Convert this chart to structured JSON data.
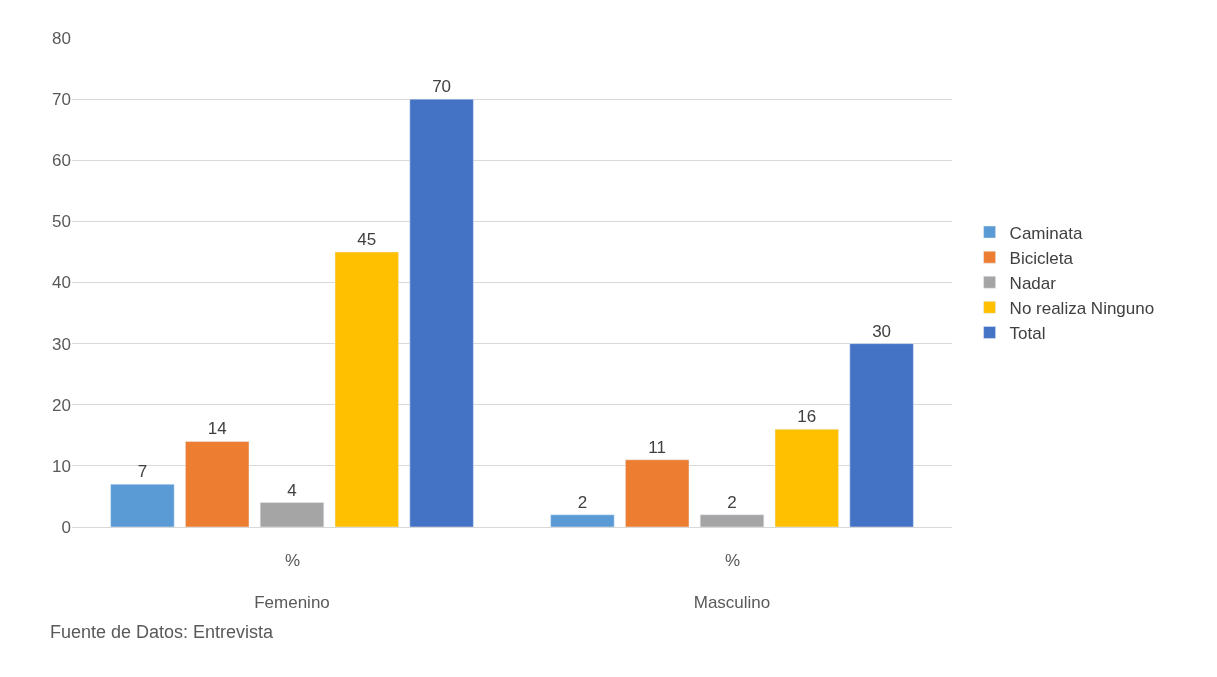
{
  "chart_data": {
    "type": "bar",
    "categories": [
      "Femenino",
      "Masculino"
    ],
    "series": [
      {
        "name": "Caminata",
        "color": "#5b9bd5",
        "values": [
          7,
          2
        ]
      },
      {
        "name": "Bicicleta",
        "color": "#ed7d31",
        "values": [
          14,
          11
        ]
      },
      {
        "name": "Nadar",
        "color": "#a5a5a5",
        "values": [
          4,
          2
        ]
      },
      {
        "name": "No realiza Ninguno",
        "color": "#ffc000",
        "values": [
          45,
          16
        ]
      },
      {
        "name": "Total",
        "color": "#4472c4",
        "values": [
          70,
          30
        ]
      }
    ],
    "ylim": [
      0,
      80
    ],
    "yticks": [
      0,
      10,
      20,
      30,
      40,
      50,
      60,
      70,
      80
    ],
    "grid": "y",
    "legend": "right",
    "data_labels": true,
    "annotations": [
      "%",
      "%",
      "Fuente de Datos: Entrevista"
    ]
  }
}
